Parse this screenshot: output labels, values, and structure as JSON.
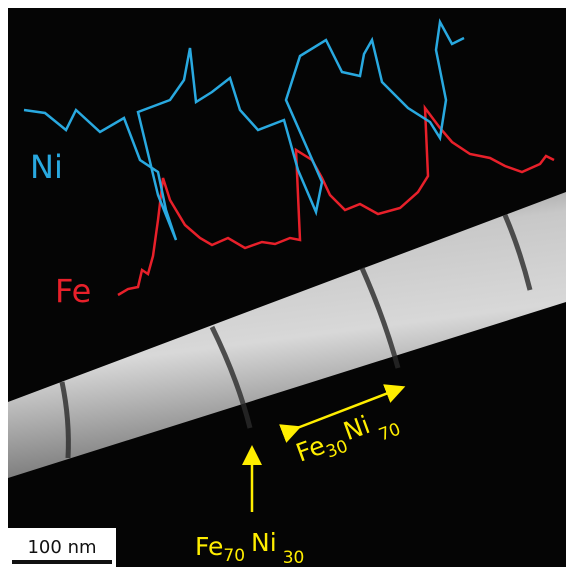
{
  "labels": {
    "ni": "Ni",
    "fe": "Fe"
  },
  "annotations": [
    {
      "element1": "Fe",
      "sub1": "70",
      "element2": "Ni",
      "sub2": "30"
    },
    {
      "element1": "Fe",
      "sub1": "30",
      "element2": "Ni",
      "sub2": "70"
    }
  ],
  "scale_bar": "100 nm"
}
